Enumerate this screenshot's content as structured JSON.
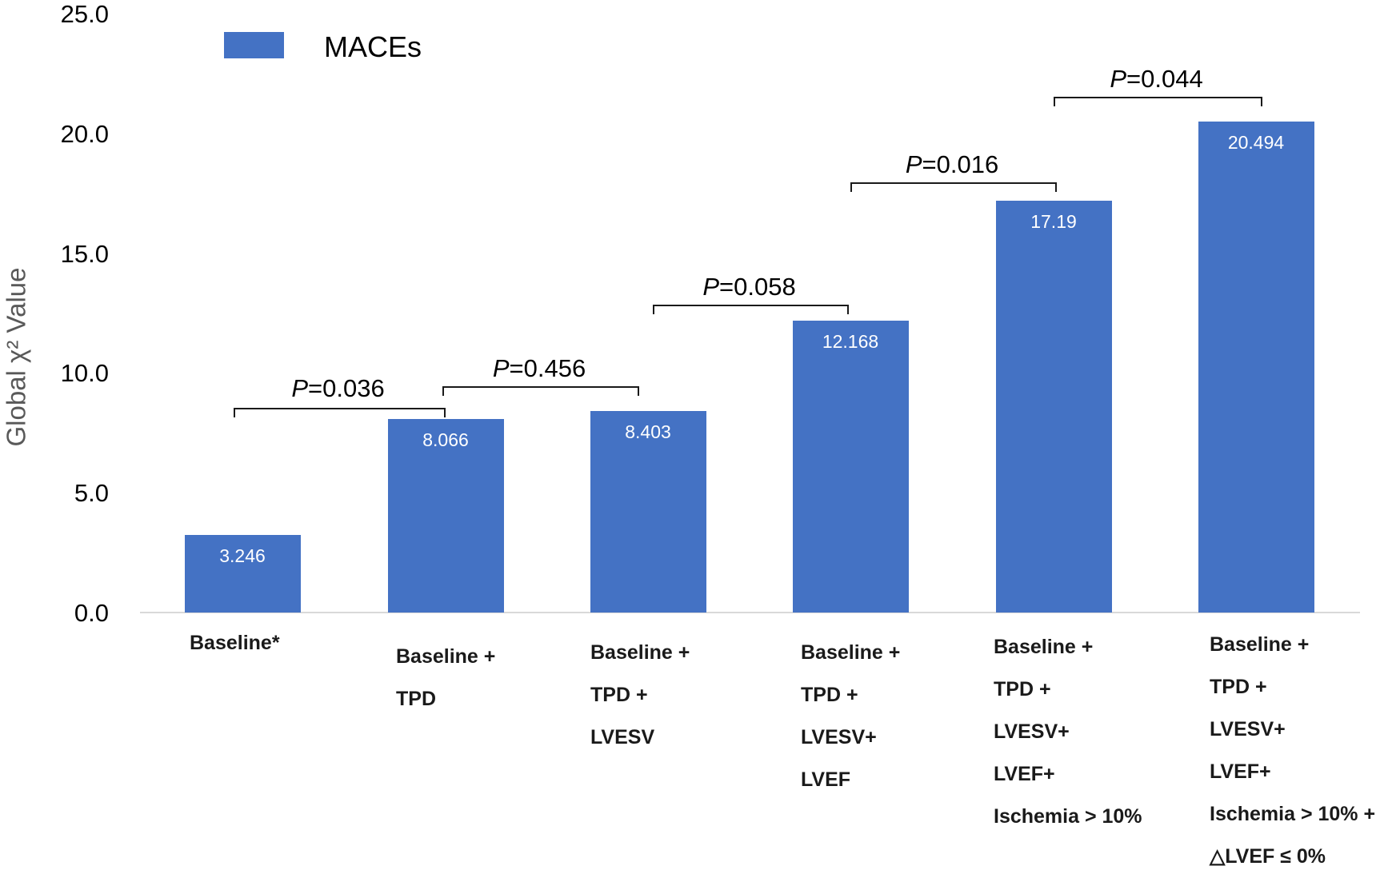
{
  "chart_data": {
    "type": "bar",
    "title": "",
    "xlabel": "",
    "ylabel": "Global χ² Value",
    "ylim": [
      0,
      25
    ],
    "yticks": [
      "0.0",
      "5.0",
      "10.0",
      "15.0",
      "20.0",
      "25.0"
    ],
    "grid": false,
    "legend": {
      "position": "top-left",
      "entries": [
        "MACEs"
      ]
    },
    "categories": [
      "Baseline*",
      "Baseline + TPD",
      "Baseline + TPD + LVESV",
      "Baseline + TPD + LVESV+ LVEF",
      "Baseline + TPD + LVESV+ LVEF+ Ischemia > 10%",
      "Baseline + TPD + LVESV+ LVEF+ Ischemia > 10% + △LVEF ≤ 0%"
    ],
    "category_lines": [
      [
        "Baseline*"
      ],
      [
        "Baseline +",
        "TPD"
      ],
      [
        "Baseline +",
        "TPD +",
        "LVESV"
      ],
      [
        "Baseline +",
        "TPD +",
        "LVESV+",
        "LVEF"
      ],
      [
        "Baseline +",
        "TPD +",
        "LVESV+",
        "LVEF+",
        "Ischemia > 10%"
      ],
      [
        "Baseline +",
        "TPD +",
        "LVESV+",
        "LVEF+",
        "Ischemia > 10% +",
        "△LVEF ≤ 0%"
      ]
    ],
    "series": [
      {
        "name": "MACEs",
        "color": "#4472c4",
        "values": [
          3.246,
          8.066,
          8.403,
          12.168,
          17.19,
          20.494
        ]
      }
    ],
    "value_labels": [
      "3.246",
      "8.066",
      "8.403",
      "12.168",
      "17.19",
      "20.494"
    ],
    "annotations": [
      {
        "from": 0,
        "to": 1,
        "p_symbol": "P",
        "text": "=0.036"
      },
      {
        "from": 1,
        "to": 2,
        "p_symbol": "P",
        "text": "=0.456"
      },
      {
        "from": 2,
        "to": 3,
        "p_symbol": "P",
        "text": "=0.058"
      },
      {
        "from": 3,
        "to": 4,
        "p_symbol": "P",
        "text": "=0.016"
      },
      {
        "from": 4,
        "to": 5,
        "p_symbol": "P",
        "text": "=0.044"
      }
    ]
  }
}
